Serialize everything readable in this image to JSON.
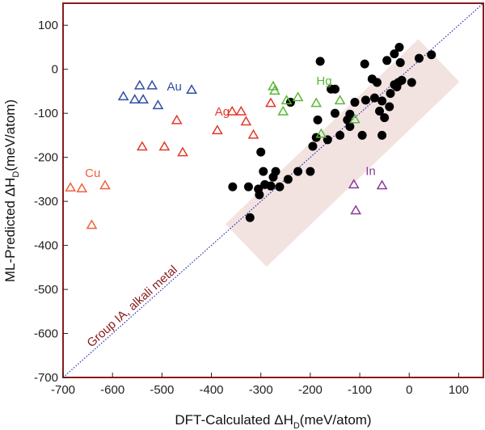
{
  "chart_data": {
    "type": "scatter",
    "title": "",
    "xlabel": "DFT-Calculated ΔH",
    "xlabel_sub": "D",
    "xlabel_units": "(meV/atom)",
    "ylabel": "ML-Predicted ΔH",
    "ylabel_sub": "D",
    "ylabel_units": "(meV/atom)",
    "xlim": [
      -700,
      150
    ],
    "ylim": [
      -700,
      150
    ],
    "xticks": [
      -700,
      -600,
      -500,
      -400,
      -300,
      -200,
      -100,
      0,
      100
    ],
    "yticks": [
      -700,
      -600,
      -500,
      -400,
      -300,
      -200,
      -100,
      0,
      100
    ],
    "frame_color": "#8b1a1a",
    "diagonal": {
      "from": [
        -700,
        -700
      ],
      "to": [
        150,
        150
      ],
      "color": "#2a2aa8",
      "style": "dotted"
    },
    "band": {
      "color": "#f2e3e1",
      "label": "Group IA, alkali metal",
      "label_color": "#8b1a1a",
      "center": [
        [
          -330,
          -400
        ],
        [
          60,
          20
        ]
      ],
      "half_width_data": 60
    },
    "series": [
      {
        "name": "Group IA, alkali metal",
        "marker": "filled-circle",
        "color": "#000000",
        "points": [
          [
            -357,
            -267
          ],
          [
            -322,
            -337
          ],
          [
            -325,
            -267
          ],
          [
            -305,
            -272
          ],
          [
            -303,
            -285
          ],
          [
            -300,
            -188
          ],
          [
            -295,
            -232
          ],
          [
            -292,
            -262
          ],
          [
            -280,
            -265
          ],
          [
            -275,
            -245
          ],
          [
            -270,
            -232
          ],
          [
            -262,
            -267
          ],
          [
            -245,
            -250
          ],
          [
            -240,
            -75
          ],
          [
            -225,
            -232
          ],
          [
            -200,
            -232
          ],
          [
            -195,
            -175
          ],
          [
            -188,
            -155
          ],
          [
            -185,
            -115
          ],
          [
            -180,
            18
          ],
          [
            -165,
            -160
          ],
          [
            -158,
            -45
          ],
          [
            -150,
            -45
          ],
          [
            -150,
            -100
          ],
          [
            -140,
            -150
          ],
          [
            -125,
            -115
          ],
          [
            -120,
            -130
          ],
          [
            -120,
            -102
          ],
          [
            -110,
            -75
          ],
          [
            -95,
            -150
          ],
          [
            -90,
            12
          ],
          [
            -88,
            -70
          ],
          [
            -75,
            -22
          ],
          [
            -70,
            -65
          ],
          [
            -65,
            -30
          ],
          [
            -60,
            -95
          ],
          [
            -55,
            -150
          ],
          [
            -55,
            -72
          ],
          [
            -50,
            -110
          ],
          [
            -45,
            20
          ],
          [
            -40,
            -85
          ],
          [
            -38,
            -55
          ],
          [
            -30,
            35
          ],
          [
            -30,
            -35
          ],
          [
            -25,
            -40
          ],
          [
            -22,
            -30
          ],
          [
            -20,
            50
          ],
          [
            -18,
            15
          ],
          [
            -15,
            -25
          ],
          [
            5,
            -30
          ],
          [
            20,
            25
          ],
          [
            45,
            33
          ]
        ]
      },
      {
        "name": "Au",
        "marker": "open-triangle",
        "color": "#2e4ea6",
        "label": "Au",
        "points": [
          [
            -578,
            -63
          ],
          [
            -555,
            -70
          ],
          [
            -545,
            -38
          ],
          [
            -538,
            -70
          ],
          [
            -520,
            -38
          ],
          [
            -508,
            -83
          ],
          [
            -440,
            -48
          ]
        ]
      },
      {
        "name": "Ag",
        "marker": "open-triangle",
        "color": "#e03a2a",
        "label": "Ag",
        "points": [
          [
            -540,
            -177
          ],
          [
            -495,
            -177
          ],
          [
            -470,
            -117
          ],
          [
            -458,
            -190
          ],
          [
            -388,
            -140
          ],
          [
            -358,
            -97
          ],
          [
            -340,
            -97
          ],
          [
            -330,
            -120
          ],
          [
            -315,
            -150
          ],
          [
            -280,
            -78
          ]
        ]
      },
      {
        "name": "Cu",
        "marker": "open-triangle",
        "color": "#f0603c",
        "label": "Cu",
        "points": [
          [
            -685,
            -270
          ],
          [
            -662,
            -272
          ],
          [
            -642,
            -355
          ],
          [
            -615,
            -265
          ]
        ]
      },
      {
        "name": "Hg",
        "marker": "open-triangle",
        "color": "#5ab836",
        "label": "Hg",
        "points": [
          [
            -275,
            -40
          ],
          [
            -272,
            -50
          ],
          [
            -255,
            -97
          ],
          [
            -248,
            -72
          ],
          [
            -225,
            -65
          ],
          [
            -188,
            -78
          ],
          [
            -178,
            -148
          ],
          [
            -140,
            -72
          ],
          [
            -110,
            -115
          ]
        ]
      },
      {
        "name": "In",
        "marker": "open-triangle",
        "color": "#8a3a9a",
        "label": "In",
        "points": [
          [
            -112,
            -263
          ],
          [
            -108,
            -322
          ],
          [
            -55,
            -265
          ]
        ]
      }
    ],
    "group_labels": [
      {
        "text": "Au",
        "x": -475,
        "y": -48,
        "color": "#2e4ea6"
      },
      {
        "text": "Ag",
        "x": -378,
        "y": -105,
        "color": "#e03a2a"
      },
      {
        "text": "Cu",
        "x": -640,
        "y": -245,
        "color": "#f0603c"
      },
      {
        "text": "Hg",
        "x": -172,
        "y": -35,
        "color": "#5ab836"
      },
      {
        "text": "In",
        "x": -78,
        "y": -240,
        "color": "#8a3a9a"
      }
    ]
  }
}
